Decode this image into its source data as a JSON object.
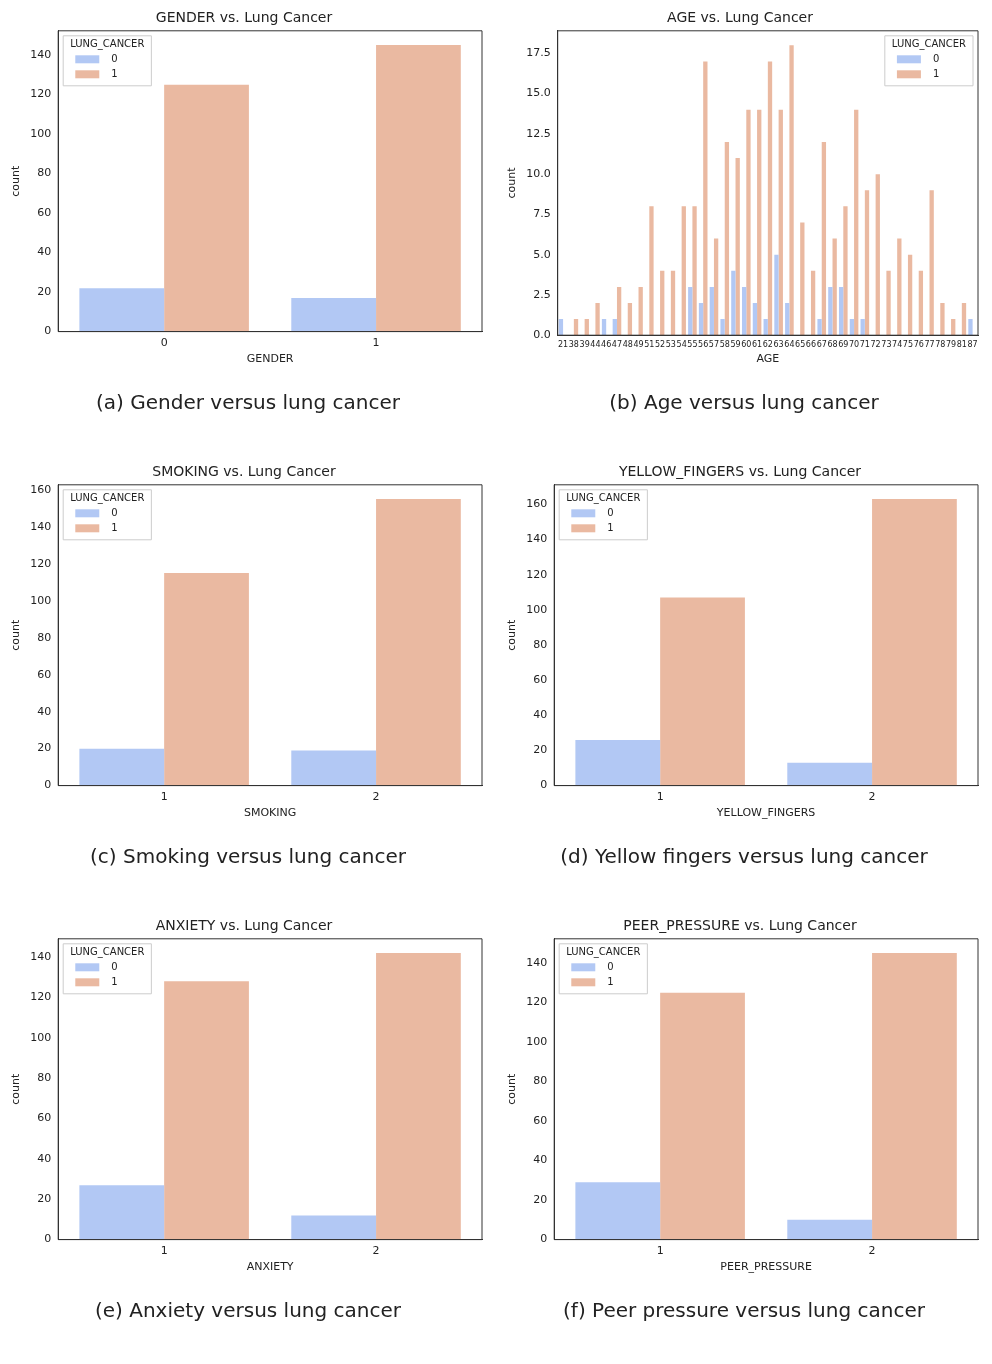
{
  "chart_data": [
    {
      "type": "bar",
      "title": "GENDER vs. Lung Cancer",
      "xlabel": "GENDER",
      "ylabel": "count",
      "legend_title": "LUNG_CANCER",
      "legend": "top left",
      "categories": [
        "0",
        "1"
      ],
      "series": [
        {
          "name": "0",
          "color": "#b2c8f4",
          "values": [
            22,
            17
          ]
        },
        {
          "name": "1",
          "color": "#eab9a1",
          "values": [
            125,
            145
          ]
        }
      ],
      "ylim": [
        0,
        152.25
      ],
      "yticks": [
        0,
        20,
        40,
        60,
        80,
        100,
        120,
        140
      ],
      "annotations": [
        "(a)  Gender versus lung cancer"
      ]
    },
    {
      "type": "bar",
      "title": "AGE vs. Lung Cancer",
      "xlabel": "AGE",
      "ylabel": "count",
      "legend_title": "LUNG_CANCER",
      "legend": "top right",
      "categories": [
        "21",
        "38",
        "39",
        "44",
        "46",
        "47",
        "48",
        "49",
        "51",
        "52",
        "53",
        "54",
        "55",
        "56",
        "57",
        "58",
        "59",
        "60",
        "61",
        "62",
        "63",
        "64",
        "65",
        "66",
        "67",
        "68",
        "69",
        "70",
        "71",
        "72",
        "73",
        "74",
        "75",
        "76",
        "77",
        "78",
        "79",
        "81",
        "87"
      ],
      "series": [
        {
          "name": "0",
          "color": "#b2c8f4",
          "values": [
            1,
            0,
            0,
            0,
            1,
            1,
            0,
            0,
            0,
            0,
            0,
            0,
            3,
            2,
            3,
            1,
            4,
            3,
            2,
            1,
            5,
            2,
            0,
            0,
            1,
            3,
            3,
            1,
            1,
            0,
            0,
            0,
            0,
            0,
            0,
            0,
            0,
            0,
            1
          ]
        },
        {
          "name": "1",
          "color": "#eab9a1",
          "values": [
            0,
            1,
            1,
            2,
            0,
            3,
            2,
            3,
            8,
            4,
            4,
            8,
            8,
            17,
            6,
            12,
            11,
            14,
            14,
            17,
            14,
            18,
            7,
            4,
            12,
            6,
            8,
            14,
            9,
            10,
            4,
            6,
            5,
            4,
            9,
            2,
            1,
            2,
            0
          ]
        }
      ],
      "ylim": [
        0,
        18.9
      ],
      "yticks": [
        {
          "value": 0,
          "label": "0.0"
        },
        2.5,
        {
          "value": 5,
          "label": "5.0"
        },
        7.5,
        {
          "value": 10,
          "label": "10.0"
        },
        12.5,
        {
          "value": 15,
          "label": "15.0"
        },
        17.5
      ],
      "annotations": [
        "(b) Age versus lung cancer"
      ]
    },
    {
      "type": "bar",
      "title": "SMOKING vs. Lung Cancer",
      "xlabel": "SMOKING",
      "ylabel": "count",
      "legend_title": "LUNG_CANCER",
      "legend": "top left",
      "categories": [
        "1",
        "2"
      ],
      "series": [
        {
          "name": "0",
          "color": "#b2c8f4",
          "values": [
            20,
            19
          ]
        },
        {
          "name": "1",
          "color": "#eab9a1",
          "values": [
            115,
            155
          ]
        }
      ],
      "ylim": [
        0,
        162.75
      ],
      "yticks": [
        0,
        20,
        40,
        60,
        80,
        100,
        120,
        140,
        160
      ],
      "annotations": [
        "(c) Smoking versus lung cancer"
      ]
    },
    {
      "type": "bar",
      "title": "YELLOW_FINGERS vs. Lung Cancer",
      "xlabel": "YELLOW_FINGERS",
      "ylabel": "count",
      "legend_title": "LUNG_CANCER",
      "legend": "top left",
      "categories": [
        "1",
        "2"
      ],
      "series": [
        {
          "name": "0",
          "color": "#b2c8f4",
          "values": [
            26,
            13
          ]
        },
        {
          "name": "1",
          "color": "#eab9a1",
          "values": [
            107,
            163
          ]
        }
      ],
      "ylim": [
        0,
        171.15
      ],
      "yticks": [
        0,
        20,
        40,
        60,
        80,
        100,
        120,
        140,
        160
      ],
      "annotations": [
        "(d) Yellow fingers versus lung cancer"
      ]
    },
    {
      "type": "bar",
      "title": "ANXIETY vs. Lung Cancer",
      "xlabel": "ANXIETY",
      "ylabel": "count",
      "legend_title": "LUNG_CANCER",
      "legend": "top left",
      "categories": [
        "1",
        "2"
      ],
      "series": [
        {
          "name": "0",
          "color": "#b2c8f4",
          "values": [
            27,
            12
          ]
        },
        {
          "name": "1",
          "color": "#eab9a1",
          "values": [
            128,
            142
          ]
        }
      ],
      "ylim": [
        0,
        149.1
      ],
      "yticks": [
        0,
        20,
        40,
        60,
        80,
        100,
        120,
        140
      ],
      "annotations": [
        "(e) Anxiety versus lung cancer"
      ]
    },
    {
      "type": "bar",
      "title": "PEER_PRESSURE vs. Lung Cancer",
      "xlabel": "PEER_PRESSURE",
      "ylabel": "count",
      "legend_title": "LUNG_CANCER",
      "legend": "top left",
      "categories": [
        "1",
        "2"
      ],
      "series": [
        {
          "name": "0",
          "color": "#b2c8f4",
          "values": [
            29,
            10
          ]
        },
        {
          "name": "1",
          "color": "#eab9a1",
          "values": [
            125,
            145
          ]
        }
      ],
      "ylim": [
        0,
        152.25
      ],
      "yticks": [
        0,
        20,
        40,
        60,
        80,
        100,
        120,
        140
      ],
      "annotations": [
        "(f) Peer pressure versus lung cancer"
      ]
    }
  ]
}
